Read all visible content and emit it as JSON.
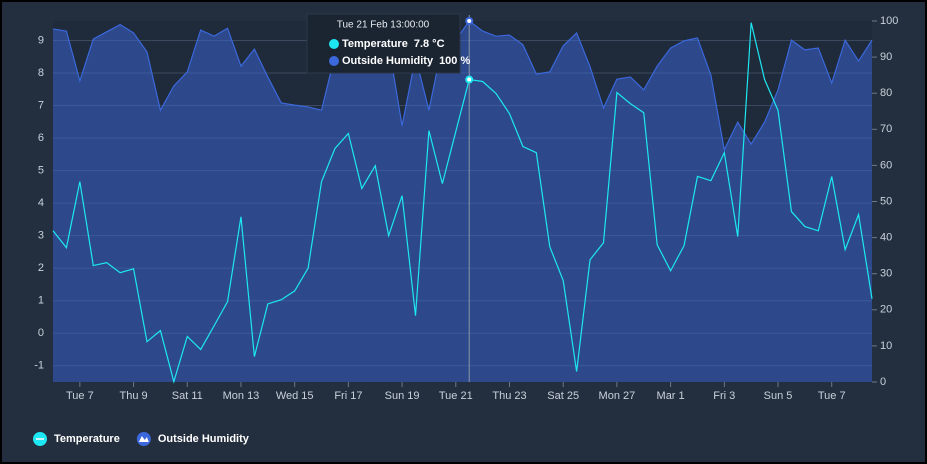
{
  "chart_data": {
    "type": "line",
    "categories": [
      null,
      null,
      "Tue 7",
      null,
      null,
      null,
      "Thu 9",
      null,
      null,
      null,
      "Sat 11",
      null,
      null,
      null,
      "Mon 13",
      null,
      null,
      null,
      "Wed 15",
      null,
      null,
      null,
      "Fri 17",
      null,
      null,
      null,
      "Sun 19",
      null,
      null,
      null,
      "Tue 21",
      null,
      null,
      null,
      "Thu 23",
      null,
      null,
      null,
      "Sat 25",
      null,
      null,
      null,
      "Mon 27",
      null,
      null,
      null,
      "Mar 1",
      null,
      null,
      null,
      "Fri 3",
      null,
      null,
      null,
      "Sun 5",
      null,
      null,
      null,
      "Tue 7",
      null,
      null,
      null
    ],
    "series": [
      {
        "name": "Outside Humidity",
        "type": "area",
        "axis": "y2",
        "color": "#3b68dc",
        "values": [
          97.8,
          97.2,
          83.4,
          95,
          97,
          99,
          96.7,
          91.4,
          75.3,
          82,
          85.9,
          97.5,
          95.8,
          98,
          87.5,
          92.2,
          84.5,
          77.3,
          76.7,
          76.2,
          75.3,
          90.6,
          93.4,
          94.7,
          92,
          93.4,
          71,
          90,
          75.3,
          93.4,
          94.7,
          100,
          97.2,
          95.8,
          96.1,
          93.4,
          85.3,
          85.9,
          93.1,
          96.7,
          87.3,
          75.9,
          83.9,
          84.5,
          80.9,
          87.5,
          92.5,
          94.5,
          95.3,
          85,
          64.3,
          72,
          65.9,
          72,
          80.9,
          94.7,
          92,
          92.5,
          82.8,
          94.7,
          88.9,
          94.7
        ]
      },
      {
        "name": "Temperature",
        "type": "line",
        "axis": "y",
        "color": "#1de7f3",
        "values": [
          3.15,
          2.63,
          4.66,
          2.08,
          2.17,
          1.86,
          1.98,
          -0.26,
          0.08,
          -1.49,
          -0.1,
          -0.5,
          0.23,
          0.97,
          3.58,
          -0.72,
          0.9,
          1.03,
          1.3,
          2.0,
          4.66,
          5.68,
          6.14,
          4.45,
          5.15,
          3.0,
          4.23,
          0.54,
          6.23,
          4.6,
          6.2,
          7.8,
          7.74,
          7.37,
          6.75,
          5.74,
          5.55,
          2.66,
          1.62,
          -1.18,
          2.26,
          2.78,
          7.4,
          7.06,
          6.78,
          2.72,
          1.92,
          2.69,
          4.82,
          4.69,
          5.55,
          2.97,
          9.55,
          7.8,
          6.85,
          3.74,
          3.28,
          3.15,
          4.82,
          2.57,
          3.65,
          1.06
        ]
      }
    ],
    "ylim": [
      -1.5,
      9.6
    ],
    "yticks": [
      -1,
      0,
      1,
      2,
      3,
      4,
      5,
      6,
      7,
      8,
      9
    ],
    "y2lim": [
      0,
      100
    ],
    "y2ticks": [
      0,
      10,
      20,
      30,
      40,
      50,
      60,
      70,
      80,
      90,
      100
    ],
    "grid": true,
    "legend": "bottom-left",
    "tooltip": {
      "index": 31,
      "title": "Tue 21 Feb 13:00:00",
      "value_labels": [
        "100 %",
        "7.8 °C"
      ]
    }
  }
}
